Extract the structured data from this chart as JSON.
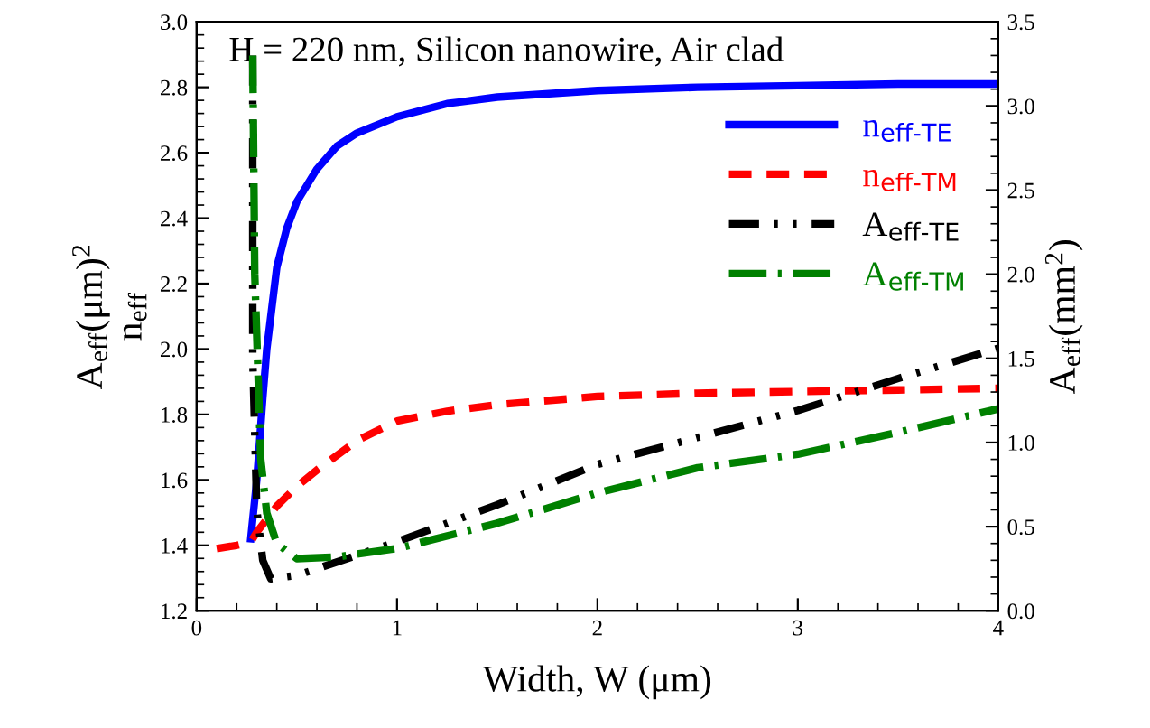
{
  "chart_data": {
    "type": "line",
    "xlabel": "Width, W (μm)",
    "ylabel": "A$_{eff}$(μm)$^{2}$\nn$_{eff}$",
    "y2label": "A$_{eff}$(mm$^{2}$)",
    "annotations": [
      "H = 220 nm, Silicon nanowire, Air clad"
    ],
    "xlim": [
      0,
      4
    ],
    "xticks": [
      0,
      1,
      2,
      3,
      4
    ],
    "ylim": [
      1.2,
      3.0
    ],
    "yticks": [
      1.2,
      1.4,
      1.6,
      1.8,
      {
        "value": 2.0,
        "label": "2.0"
      },
      2.2,
      2.4,
      2.6,
      2.8,
      {
        "value": 3.0,
        "label": "3.0"
      }
    ],
    "y2lim": [
      0,
      3.5
    ],
    "y2ticks": [
      {
        "value": 0,
        "label": "0.0"
      },
      0.5,
      {
        "value": 1,
        "label": "1.0"
      },
      1.5,
      {
        "value": 2,
        "label": "2.0"
      },
      2.5,
      {
        "value": 3,
        "label": "3.0"
      },
      3.5
    ],
    "legend": "top right",
    "grid": false,
    "series": [
      {
        "name": "n$_{eff-TE}$",
        "color": "#0000ff",
        "line_style": "solid",
        "x": [
          0.27,
          0.3,
          0.33,
          0.35,
          0.4,
          0.45,
          0.5,
          0.6,
          0.7,
          0.8,
          1,
          1.25,
          1.5,
          2,
          2.5,
          3,
          3.5,
          4
        ],
        "values": [
          1.42,
          1.6,
          1.85,
          2.0,
          2.25,
          2.37,
          2.45,
          2.55,
          2.62,
          2.66,
          2.71,
          2.75,
          2.77,
          2.79,
          2.8,
          2.805,
          2.81,
          2.81
        ]
      },
      {
        "name": "n$_{eff-TM}$",
        "color": "#ff0000",
        "line_style": "dashed",
        "x": [
          0.1,
          0.2,
          0.27,
          0.3,
          0.4,
          0.5,
          0.6,
          0.8,
          1,
          1.25,
          1.5,
          2,
          2.5,
          3,
          3.5,
          4
        ],
        "values": [
          1.39,
          1.4,
          1.41,
          1.44,
          1.52,
          1.58,
          1.63,
          1.72,
          1.78,
          1.81,
          1.83,
          1.855,
          1.865,
          1.87,
          1.875,
          1.88
        ]
      },
      {
        "name": "A$_{eff-TE}$",
        "color": "#000000",
        "line_style": "dashdotdot",
        "axis": "y2",
        "x": [
          0.28,
          0.28,
          0.3,
          0.33,
          0.37,
          0.5,
          0.7,
          1,
          1.5,
          2,
          2.5,
          3,
          3.5,
          4
        ],
        "values": [
          3.3,
          1.5,
          0.6,
          0.3,
          0.19,
          0.21,
          0.29,
          0.41,
          0.63,
          0.87,
          1.03,
          1.19,
          1.38,
          1.56
        ]
      },
      {
        "name": "A$_{eff-TM}$",
        "color": "#008000",
        "line_style": "dashdot",
        "axis": "y2",
        "x": [
          0.28,
          0.29,
          0.32,
          0.35,
          0.4,
          0.5,
          0.7,
          1,
          1.5,
          2,
          2.5,
          3,
          3.5,
          4
        ],
        "values": [
          3.3,
          2.0,
          0.9,
          0.58,
          0.4,
          0.31,
          0.32,
          0.37,
          0.52,
          0.7,
          0.85,
          0.93,
          1.06,
          1.2
        ]
      }
    ]
  }
}
